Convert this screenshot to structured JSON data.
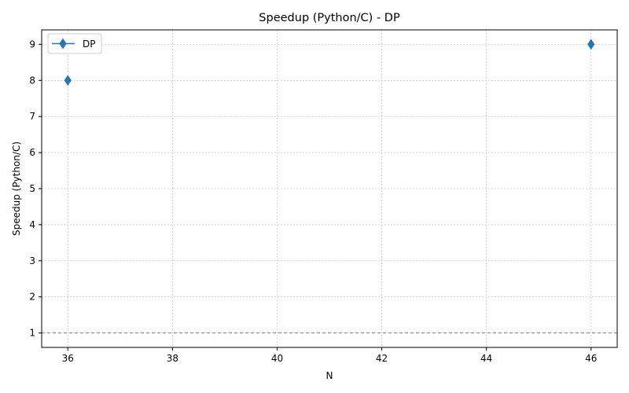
{
  "chart_data": {
    "type": "line",
    "title": "Speedup (Python/C) - DP",
    "xlabel": "N",
    "ylabel": "Speedup (Python/C)",
    "xlim": [
      35.5,
      46.5
    ],
    "ylim": [
      0.6,
      9.4
    ],
    "xticks": [
      36,
      38,
      40,
      42,
      44,
      46
    ],
    "yticks": [
      1,
      2,
      3,
      4,
      5,
      6,
      7,
      8,
      9
    ],
    "grid": true,
    "legend_position": "top-left",
    "reference_line": {
      "y": 1,
      "style": "dashed",
      "color": "#808080"
    },
    "series": [
      {
        "name": "DP",
        "color": "#1f77b4",
        "marker": "thin-diamond",
        "x": [
          36,
          46
        ],
        "y": [
          8,
          9
        ]
      }
    ]
  }
}
